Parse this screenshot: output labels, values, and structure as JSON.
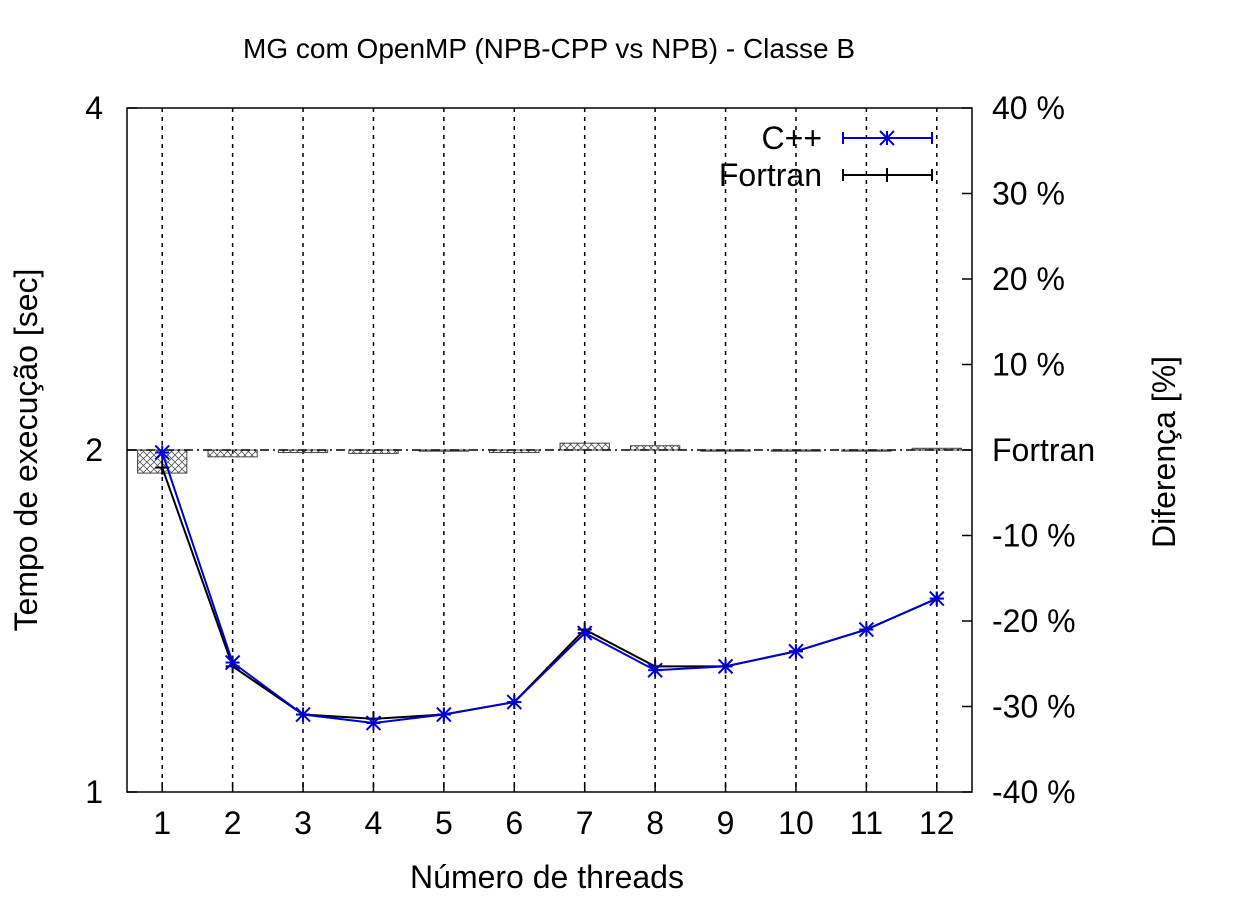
{
  "chart_data": {
    "type": "line",
    "title": "MG com OpenMP (NPB-CPP vs NPB) - Classe B",
    "xlabel": "Número de threads",
    "ylabel": "Tempo de execução [sec]",
    "y2label": "Diferença [%]",
    "x": [
      1,
      2,
      3,
      4,
      5,
      6,
      7,
      8,
      9,
      10,
      11,
      12
    ],
    "xticks": [
      "1",
      "2",
      "3",
      "4",
      "5",
      "6",
      "7",
      "8",
      "9",
      "10",
      "11",
      "12"
    ],
    "yscale": "log2",
    "ylim": [
      1,
      4
    ],
    "yticks": [
      "1",
      "2",
      "4"
    ],
    "y2lim": [
      -40,
      40
    ],
    "y2ticks": [
      "-40 %",
      "-30 %",
      "-20 %",
      "-10 %",
      "Fortran",
      "10 %",
      "20 %",
      "30 %",
      "40 %"
    ],
    "grid": "vertical dashed at each x tick",
    "legend_position": "top-right",
    "series": [
      {
        "name": "C++",
        "color": "#0000cc",
        "marker": "asterisk",
        "values": [
          1.99,
          1.3,
          1.17,
          1.15,
          1.17,
          1.2,
          1.38,
          1.28,
          1.29,
          1.33,
          1.39,
          1.48
        ]
      },
      {
        "name": "Fortran",
        "color": "#000000",
        "marker": "plus",
        "values": [
          1.93,
          1.29,
          1.17,
          1.16,
          1.17,
          1.2,
          1.39,
          1.29,
          1.29,
          1.33,
          1.39,
          1.48
        ]
      }
    ],
    "difference_bars": {
      "unit": "%",
      "values": [
        -2.7,
        -0.8,
        -0.3,
        -0.4,
        -0.1,
        -0.3,
        0.8,
        0.5,
        0.0,
        -0.1,
        0.0,
        0.2
      ]
    }
  }
}
